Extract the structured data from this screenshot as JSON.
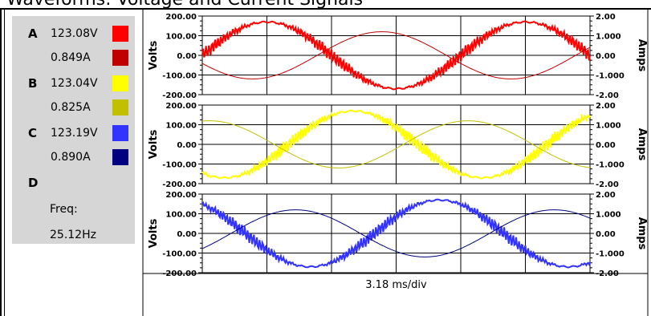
{
  "title": "Waveforms: Voltage and Current Signals",
  "legend": {
    "phases": [
      {
        "letter": "A",
        "voltage": "123.08V",
        "current": "0.849A",
        "voltage_color": "#ff0000",
        "current_color": "#c00000"
      },
      {
        "letter": "B",
        "voltage": "123.04V",
        "current": "0.825A",
        "voltage_color": "#ffff00",
        "current_color": "#c0c000"
      },
      {
        "letter": "C",
        "voltage": "123.19V",
        "current": "0.890A",
        "voltage_color": "#3333ff",
        "current_color": "#000080"
      },
      {
        "letter": "D",
        "voltage": "",
        "current": "",
        "voltage_color": "",
        "current_color": ""
      }
    ],
    "freq_label": "Freq:",
    "freq_value": "25.12Hz"
  },
  "xlabel": "3.18 ms/div",
  "chart_data": [
    {
      "type": "line",
      "ylabel_left": "Volts",
      "ylabel_right": "Amps",
      "yticks_left": [
        "200.00",
        "100.00",
        "0.00",
        "-100.00",
        "-200.00"
      ],
      "yticks_right": [
        "2.00",
        "1.000",
        "0.00",
        "-1.000",
        "-2.00"
      ],
      "ylim_left": [
        -200,
        200
      ],
      "ylim_right": [
        -2,
        2
      ],
      "x_divisions": 6,
      "series": [
        {
          "axis": "left",
          "kind": "voltage",
          "color": "#ff0000",
          "amplitude": 170,
          "phase_deg": 0,
          "periods": 1.5
        },
        {
          "axis": "right",
          "kind": "current",
          "color": "#c00000",
          "amplitude": 1.2,
          "phase_deg": 200,
          "periods": 1.5
        }
      ]
    },
    {
      "type": "line",
      "ylabel_left": "Volts",
      "ylabel_right": "Amps",
      "yticks_left": [
        "200.00",
        "100.00",
        "0.00",
        "-100.00",
        "-200.00"
      ],
      "yticks_right": [
        "2.00",
        "1.000",
        "0.00",
        "-1.000",
        "-2.00"
      ],
      "ylim_left": [
        -200,
        200
      ],
      "ylim_right": [
        -2,
        2
      ],
      "x_divisions": 6,
      "series": [
        {
          "axis": "left",
          "kind": "voltage",
          "color": "#ffff00",
          "amplitude": 170,
          "phase_deg": -120,
          "periods": 1.5
        },
        {
          "axis": "right",
          "kind": "current",
          "color": "#c0c000",
          "amplitude": 1.2,
          "phase_deg": 80,
          "periods": 1.5
        }
      ]
    },
    {
      "type": "line",
      "ylabel_left": "Volts",
      "ylabel_right": "Amps",
      "yticks_left": [
        "200.00",
        "100.00",
        "0.00",
        "-100.00",
        "-200.00"
      ],
      "yticks_right": [
        "2.00",
        "1.000",
        "0.00",
        "-1.000",
        "-2.00"
      ],
      "ylim_left": [
        -200,
        200
      ],
      "ylim_right": [
        -2,
        2
      ],
      "x_divisions": 6,
      "series": [
        {
          "axis": "left",
          "kind": "voltage",
          "color": "#3333ff",
          "amplitude": 170,
          "phase_deg": 120,
          "periods": 1.5
        },
        {
          "axis": "right",
          "kind": "current",
          "color": "#000080",
          "amplitude": 1.2,
          "phase_deg": 320,
          "periods": 1.5
        }
      ]
    }
  ]
}
